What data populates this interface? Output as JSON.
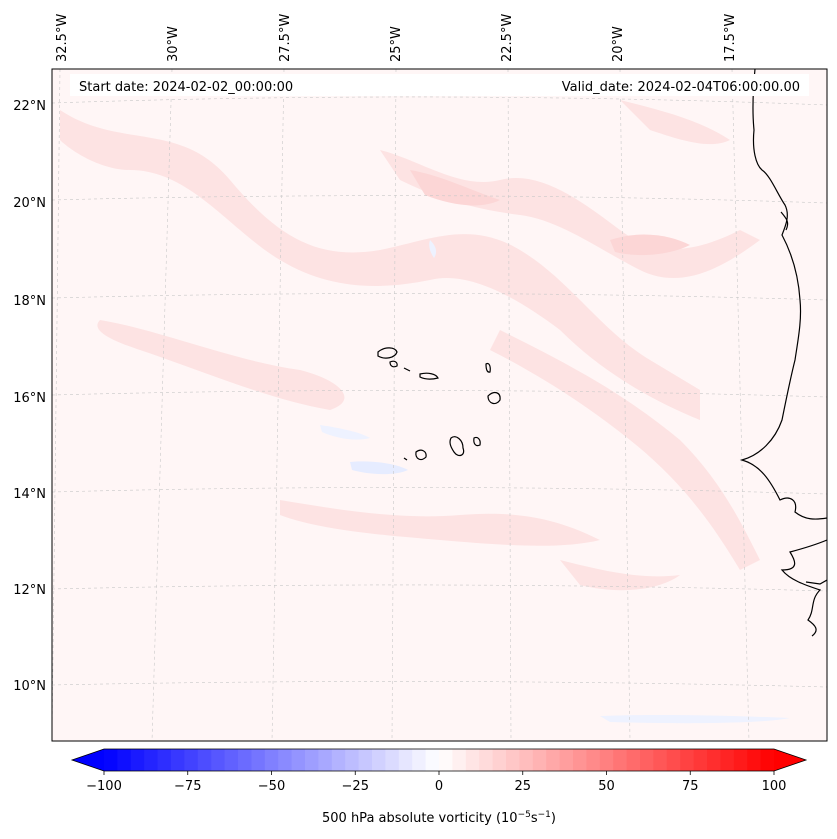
{
  "map": {
    "start_label": "Start date: 2024-02-02_00:00:00",
    "valid_label": "Valid_date: 2024-02-04T06:00:00.00",
    "lon_labels": [
      "32.5°W",
      "30°W",
      "27.5°W",
      "25°W",
      "22.5°W",
      "20°W",
      "17.5°W"
    ],
    "lat_labels": [
      "22°N",
      "20°N",
      "18°N",
      "16°N",
      "14°N",
      "12°N",
      "10°N"
    ],
    "gridlines": true,
    "coastline_color": "#000000"
  },
  "colorbar": {
    "ticks": [
      "−100",
      "−75",
      "−50",
      "−25",
      "0",
      "25",
      "50",
      "75",
      "100"
    ],
    "levels": 50,
    "range": [
      -100,
      100
    ],
    "extend": "both",
    "colormap": "bwr",
    "low_color": "#0000ff",
    "mid_color": "#ffffff",
    "high_color": "#ff0000",
    "label_text": "500 hPa absolute vorticity (10",
    "label_exp1": "−5",
    "label_mid": "s",
    "label_exp2": "−1",
    "label_close": ")"
  }
}
